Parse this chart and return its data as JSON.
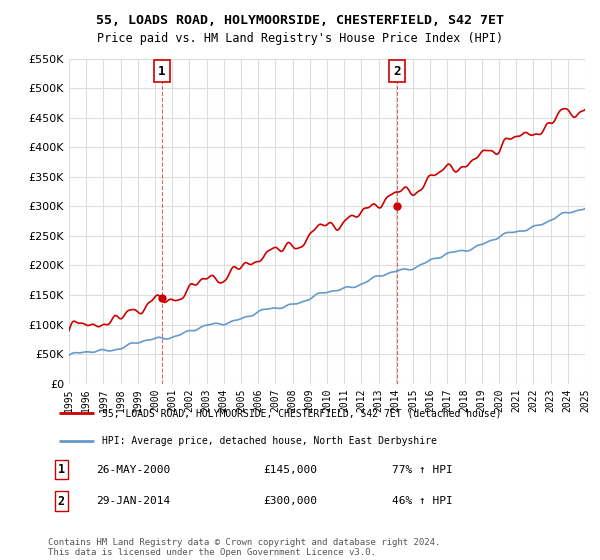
{
  "title": "55, LOADS ROAD, HOLYMOORSIDE, CHESTERFIELD, S42 7ET",
  "subtitle": "Price paid vs. HM Land Registry's House Price Index (HPI)",
  "legend_label_red": "55, LOADS ROAD, HOLYMOORSIDE, CHESTERFIELD, S42 7ET (detached house)",
  "legend_label_blue": "HPI: Average price, detached house, North East Derbyshire",
  "sale1_date": "26-MAY-2000",
  "sale1_price": "£145,000",
  "sale1_hpi": "77% ↑ HPI",
  "sale2_date": "29-JAN-2014",
  "sale2_price": "£300,000",
  "sale2_hpi": "46% ↑ HPI",
  "footer": "Contains HM Land Registry data © Crown copyright and database right 2024.\nThis data is licensed under the Open Government Licence v3.0.",
  "sale1_x": 2000.4,
  "sale1_y": 145000,
  "sale2_x": 2014.08,
  "sale2_y": 300000,
  "ylim": [
    0,
    550000
  ],
  "xlim": [
    1995,
    2025
  ],
  "color_red": "#cc0000",
  "color_blue": "#6699cc",
  "background_plot": "#ffffff",
  "background_fig": "#ffffff",
  "grid_color": "#dddddd",
  "annotation_box_color": "#cc0000"
}
